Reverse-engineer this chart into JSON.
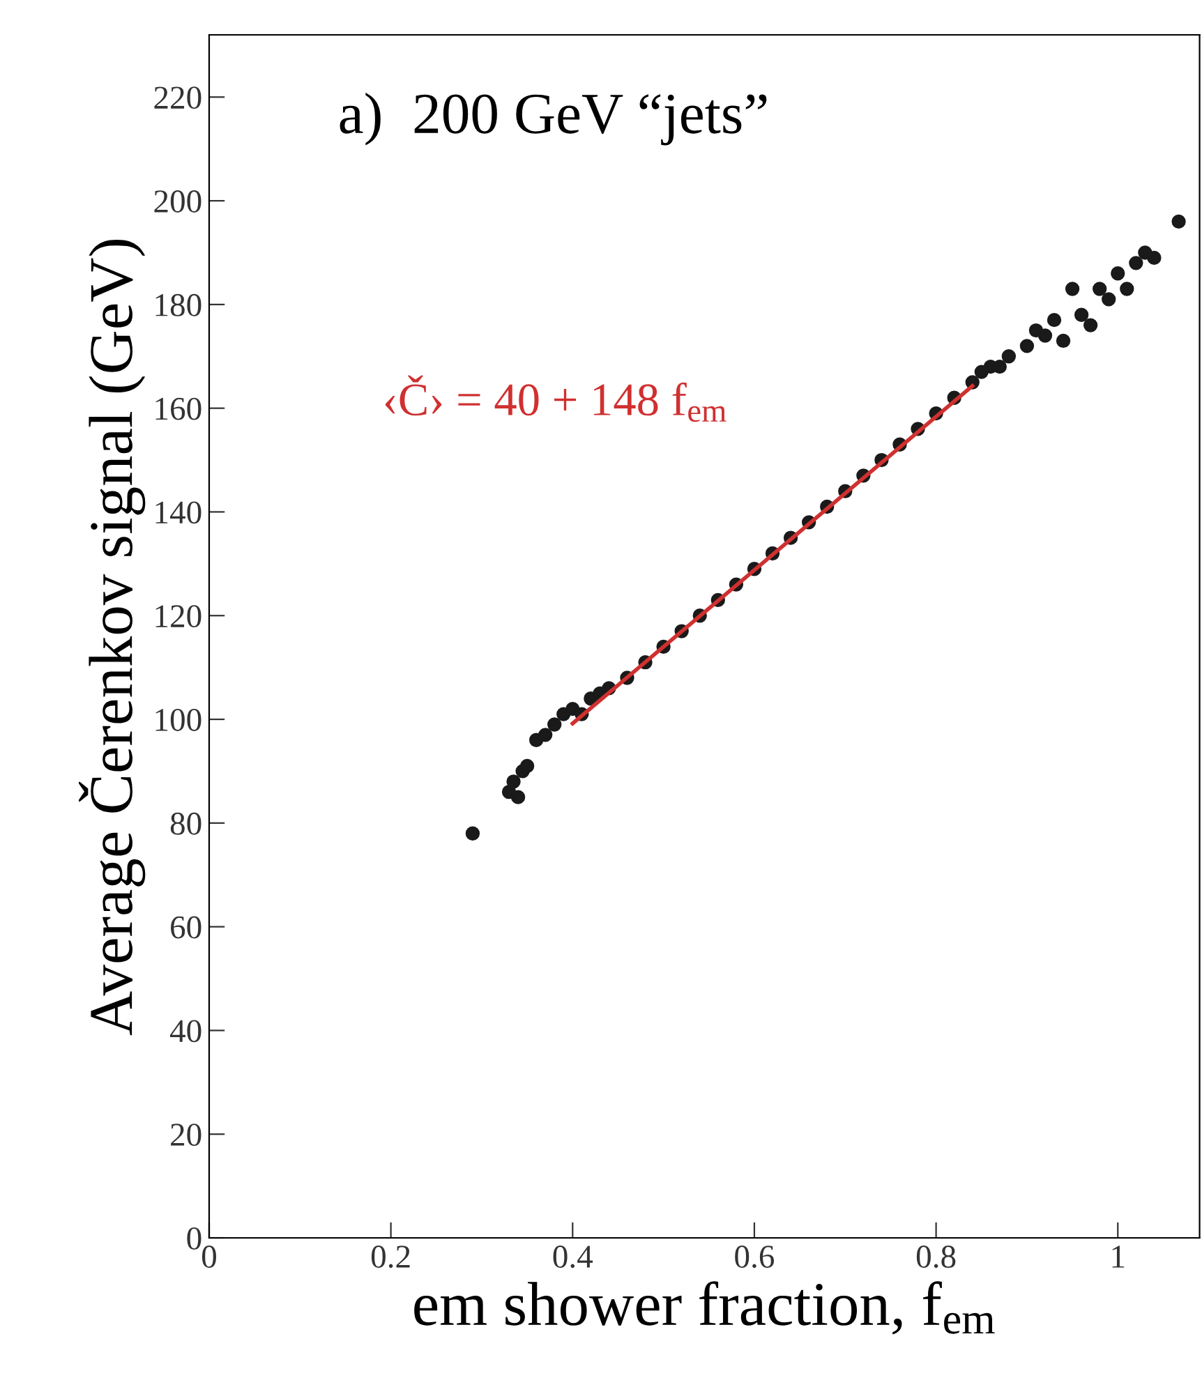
{
  "chart_data": {
    "type": "scatter",
    "xlabel": "em shower fraction, f$_{em}$",
    "ylabel": "Average Čerenkov signal (GeV)",
    "annotations": [
      "a)  200 GeV “jets”",
      "‹Č› = 40 + 148 f$_{em}$"
    ],
    "xlim": [
      0,
      1.09
    ],
    "ylim": [
      0,
      232
    ],
    "xticks": [
      0,
      0.2,
      0.4,
      0.6,
      0.8,
      1
    ],
    "yticks": [
      0,
      20,
      40,
      60,
      80,
      100,
      120,
      140,
      160,
      180,
      200,
      220
    ],
    "grid": false,
    "marker": "circle",
    "series": [
      {
        "color": "#1a1a1a",
        "x": [
          0.29,
          0.33,
          0.335,
          0.34,
          0.345,
          0.35,
          0.36,
          0.37,
          0.38,
          0.39,
          0.4,
          0.41,
          0.42,
          0.43,
          0.44,
          0.46,
          0.48,
          0.5,
          0.52,
          0.54,
          0.56,
          0.58,
          0.6,
          0.62,
          0.64,
          0.66,
          0.68,
          0.7,
          0.72,
          0.74,
          0.76,
          0.78,
          0.8,
          0.82,
          0.84,
          0.85,
          0.86,
          0.87,
          0.88,
          0.9,
          0.91,
          0.92,
          0.93,
          0.94,
          0.95,
          0.96,
          0.97,
          0.98,
          0.99,
          1.0,
          1.01,
          1.02,
          1.03,
          1.04,
          1.067
        ],
        "values": [
          78,
          86,
          88,
          85,
          90,
          91,
          96,
          97,
          99,
          101,
          102,
          101,
          104,
          105,
          106,
          108,
          111,
          114,
          117,
          120,
          123,
          126,
          129,
          132,
          135,
          138,
          141,
          144,
          147,
          150,
          153,
          156,
          159,
          162,
          165,
          167,
          168,
          168,
          170,
          172,
          175,
          174,
          177,
          173,
          183,
          178,
          176,
          183,
          181,
          186,
          183,
          188,
          190,
          189,
          196
        ]
      },
      {
        "type": "line",
        "color": "#d03030",
        "marker": "none",
        "line_style": "solid",
        "x": [
          0.4,
          0.84
        ],
        "values": [
          99.2,
          164.3
        ]
      }
    ]
  }
}
